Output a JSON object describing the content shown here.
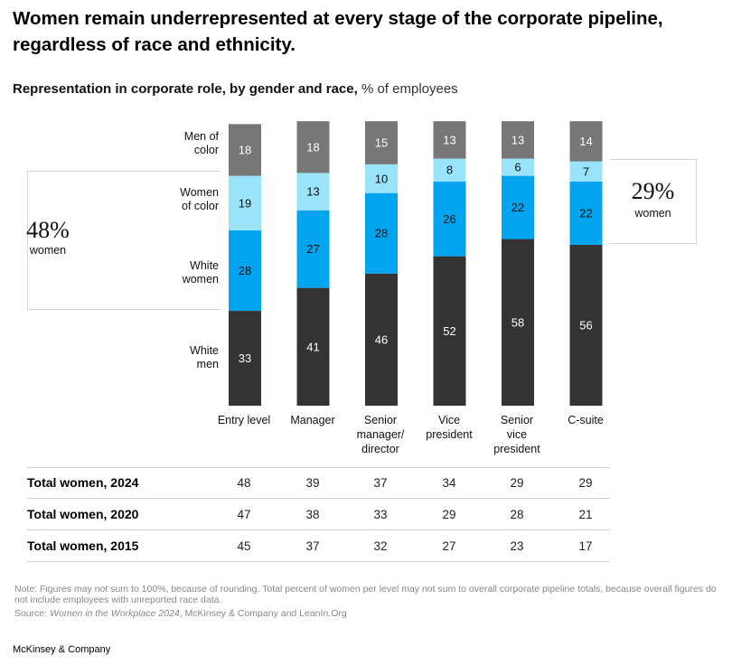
{
  "title": "Women remain underrepresented at every stage of the corporate pipeline, regardless of race and ethnicity.",
  "subtitle": {
    "bold": "Representation in corporate role, by gender and race,",
    "unit": "% of employees"
  },
  "colors": {
    "men_of_color": "#777777",
    "women_of_color": "#99e3fb",
    "white_women": "#00a4ef",
    "white_men": "#333333",
    "label_light": "#ffffff",
    "label_dark": "#111111"
  },
  "chart_data": {
    "type": "bar",
    "stacked": true,
    "categories": [
      "Entry level",
      "Manager",
      "Senior manager/ director",
      "Vice president",
      "Senior vice president",
      "C-suite"
    ],
    "category_lines": [
      [
        "Entry level"
      ],
      [
        "Manager"
      ],
      [
        "Senior",
        "manager/",
        "director"
      ],
      [
        "Vice",
        "president"
      ],
      [
        "Senior",
        "vice",
        "president"
      ],
      [
        "C-suite"
      ]
    ],
    "series": [
      {
        "name": "White men",
        "name_lines": [
          "White",
          "men"
        ],
        "values": [
          33,
          41,
          46,
          52,
          58,
          56
        ]
      },
      {
        "name": "White women",
        "name_lines": [
          "White",
          "women"
        ],
        "values": [
          28,
          27,
          28,
          26,
          22,
          22
        ]
      },
      {
        "name": "Women of color",
        "name_lines": [
          "Women",
          "of color"
        ],
        "values": [
          19,
          13,
          10,
          8,
          6,
          7
        ]
      },
      {
        "name": "Men of color",
        "name_lines": [
          "Men of",
          "color"
        ],
        "values": [
          18,
          18,
          15,
          13,
          13,
          14
        ]
      }
    ],
    "ylim": [
      0,
      100
    ]
  },
  "callouts": {
    "left": {
      "value": "48%",
      "label": "women"
    },
    "right": {
      "value": "29%",
      "label": "women"
    }
  },
  "table": {
    "rows": [
      {
        "label": "Total women, 2024",
        "values": [
          "48",
          "39",
          "37",
          "34",
          "29",
          "29"
        ]
      },
      {
        "label": "Total women, 2020",
        "values": [
          "47",
          "38",
          "33",
          "29",
          "28",
          "21"
        ]
      },
      {
        "label": "Total women, 2015",
        "values": [
          "45",
          "37",
          "32",
          "27",
          "23",
          "17"
        ]
      }
    ]
  },
  "note": "Note: Figures may not sum to 100%, because of rounding. Total percent of women per level may not sum to overall corporate pipeline totals, because overall figures do not include employees with unreported race data.",
  "source": {
    "prefix": "Source:",
    "title": "Women in the Workplace 2024",
    "suffix": ", McKinsey & Company and LeanIn.Org"
  },
  "brand": "McKinsey & Company"
}
